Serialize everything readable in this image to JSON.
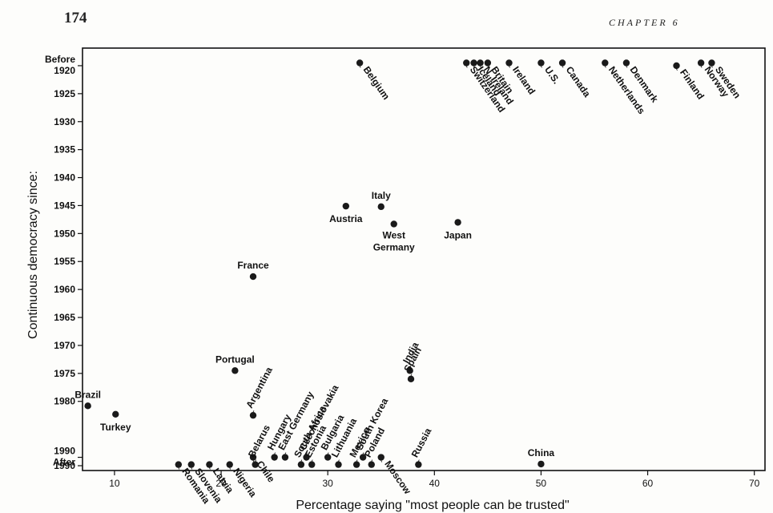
{
  "page": {
    "number": "174",
    "running_head": "CHAPTER 6"
  },
  "chart_data": {
    "type": "scatter",
    "title": "",
    "xlabel": "Percentage saying \"most people can be trusted\"",
    "ylabel": "Continuous democracy since:",
    "xlim": [
      7,
      71
    ],
    "ylim": [
      1918,
      1991.5
    ],
    "xticks": [
      10,
      20,
      30,
      40,
      50,
      60,
      70
    ],
    "yticks": [
      {
        "value": 1920,
        "label": [
          "Before",
          "1920"
        ]
      },
      {
        "value": 1925,
        "label": [
          "1925"
        ]
      },
      {
        "value": 1930,
        "label": [
          "1930"
        ]
      },
      {
        "value": 1935,
        "label": [
          "1935"
        ]
      },
      {
        "value": 1940,
        "label": [
          "1940"
        ]
      },
      {
        "value": 1945,
        "label": [
          "1945"
        ]
      },
      {
        "value": 1950,
        "label": [
          "1950"
        ]
      },
      {
        "value": 1955,
        "label": [
          "1955"
        ]
      },
      {
        "value": 1960,
        "label": [
          "1960"
        ]
      },
      {
        "value": 1965,
        "label": [
          "1965"
        ]
      },
      {
        "value": 1970,
        "label": [
          "1970"
        ]
      },
      {
        "value": 1975,
        "label": [
          "1975"
        ]
      },
      {
        "value": 1980,
        "label": [
          "1980"
        ]
      },
      {
        "value": 1990,
        "label": [
          "1990",
          "After"
        ]
      },
      {
        "value": 1991.5,
        "label": [
          "1990"
        ]
      }
    ],
    "grid": false,
    "y_inverted": true,
    "points": [
      {
        "name": "Belgium",
        "x": 33,
        "y": 1919.5,
        "label_style": "rot"
      },
      {
        "name": "Switzerland",
        "x": 43,
        "y": 1919.5,
        "label_style": "rot"
      },
      {
        "name": "Iceland",
        "x": 43.7,
        "y": 1919.5,
        "label_style": "rot"
      },
      {
        "name": "N. Ireland",
        "x": 44.3,
        "y": 1919.5,
        "label_style": "rot"
      },
      {
        "name": "Britain",
        "x": 45,
        "y": 1919.5,
        "label_style": "rot"
      },
      {
        "name": "Ireland",
        "x": 47,
        "y": 1919.5,
        "label_style": "rot"
      },
      {
        "name": "U.S.",
        "x": 50,
        "y": 1919.5,
        "label_style": "rot"
      },
      {
        "name": "Canada",
        "x": 52,
        "y": 1919.5,
        "label_style": "rot"
      },
      {
        "name": "Netherlands",
        "x": 56,
        "y": 1919.5,
        "label_style": "rot"
      },
      {
        "name": "Denmark",
        "x": 58,
        "y": 1919.5,
        "label_style": "rot"
      },
      {
        "name": "Finland",
        "x": 62.7,
        "y": 1920,
        "label_style": "rot"
      },
      {
        "name": "Norway",
        "x": 65,
        "y": 1919.5,
        "label_style": "rot"
      },
      {
        "name": "Sweden",
        "x": 66,
        "y": 1919.5,
        "label_style": "rot"
      },
      {
        "name": "Italy",
        "x": 35,
        "y": 1945.2,
        "label_style": "above"
      },
      {
        "name": "Austria",
        "x": 31.7,
        "y": 1945.1,
        "label_style": "below"
      },
      {
        "name": "West Germany",
        "x": 36.2,
        "y": 1948.3,
        "label_style": "below2"
      },
      {
        "name": "Japan",
        "x": 42.2,
        "y": 1948,
        "label_style": "below"
      },
      {
        "name": "France",
        "x": 23,
        "y": 1957.7,
        "label_style": "above"
      },
      {
        "name": "Portugal",
        "x": 21.3,
        "y": 1974.5,
        "label_style": "above"
      },
      {
        "name": "India",
        "x": 37.7,
        "y": 1974.5,
        "label_style": "rotup"
      },
      {
        "name": "Spain",
        "x": 37.8,
        "y": 1976,
        "label_style": "rotup"
      },
      {
        "name": "Brazil",
        "x": 7.5,
        "y": 1980.8,
        "label_style": "above"
      },
      {
        "name": "Turkey",
        "x": 10.1,
        "y": 1982.3,
        "label_style": "below"
      },
      {
        "name": "Argentina",
        "x": 23,
        "y": 1982.5,
        "label_style": "rotup"
      },
      {
        "name": "China",
        "x": 50,
        "y": 1991.2,
        "label_style": "above"
      },
      {
        "name": "Romania",
        "x": 16,
        "y": 1991.3,
        "label_style": "rot"
      },
      {
        "name": "Slovenia",
        "x": 17.2,
        "y": 1991.3,
        "label_style": "rot"
      },
      {
        "name": "Latvia",
        "x": 18.9,
        "y": 1991.3,
        "label_style": "rot"
      },
      {
        "name": "Nigeria",
        "x": 20.8,
        "y": 1991.3,
        "label_style": "rot"
      },
      {
        "name": "Chile",
        "x": 23,
        "y": 1990,
        "label_style": "rot"
      },
      {
        "name": "Belarus",
        "x": 23.2,
        "y": 1991.3,
        "label_style": "rotup"
      },
      {
        "name": "Hungary",
        "x": 25,
        "y": 1990,
        "label_style": "rotup"
      },
      {
        "name": "East Germany",
        "x": 26,
        "y": 1990,
        "label_style": "rotup"
      },
      {
        "name": "South Africa",
        "x": 27.5,
        "y": 1991.3,
        "label_style": "rotup"
      },
      {
        "name": "Czechoslovakia",
        "x": 28,
        "y": 1990,
        "label_style": "rotup"
      },
      {
        "name": "Estonia",
        "x": 28.5,
        "y": 1991.3,
        "label_style": "rotup"
      },
      {
        "name": "Bulgaria",
        "x": 30,
        "y": 1990,
        "label_style": "rotup"
      },
      {
        "name": "Lithuania",
        "x": 31,
        "y": 1991.3,
        "label_style": "rotup"
      },
      {
        "name": "Mexico",
        "x": 32.7,
        "y": 1991.3,
        "label_style": "rotup"
      },
      {
        "name": "South Korea",
        "x": 33.3,
        "y": 1990,
        "label_style": "rotup"
      },
      {
        "name": "Poland",
        "x": 34.1,
        "y": 1991.3,
        "label_style": "rotup"
      },
      {
        "name": "Moscow",
        "x": 35,
        "y": 1990,
        "label_style": "rot"
      },
      {
        "name": "Russia",
        "x": 38.5,
        "y": 1991.3,
        "label_style": "rotup"
      }
    ]
  }
}
